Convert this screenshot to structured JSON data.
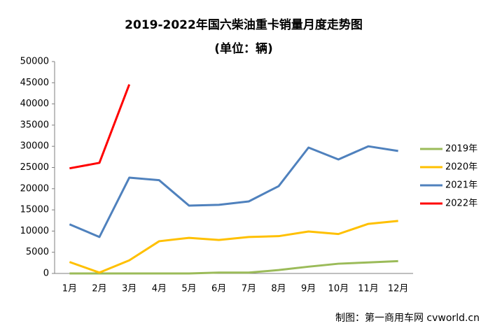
{
  "chart_data": {
    "type": "line",
    "title": "2019-2022年国六柴油重卡销量月度走势图",
    "subtitle": "(单位：辆)",
    "source": "制图：第一商用车网 cvworld.cn",
    "categories": [
      "1月",
      "2月",
      "3月",
      "4月",
      "5月",
      "6月",
      "7月",
      "8月",
      "9月",
      "10月",
      "11月",
      "12月"
    ],
    "series": [
      {
        "name": "2019年",
        "color": "#9bbb59",
        "values": [
          0,
          0,
          0,
          0,
          0,
          200,
          200,
          800,
          1600,
          2300,
          2600,
          2900
        ]
      },
      {
        "name": "2020年",
        "color": "#ffc000",
        "values": [
          2700,
          200,
          3100,
          7600,
          8400,
          7900,
          8600,
          8800,
          9900,
          9300,
          11700,
          12400
        ]
      },
      {
        "name": "2021年",
        "color": "#4f81bd",
        "values": [
          11600,
          8600,
          22600,
          22000,
          16000,
          16200,
          17000,
          20600,
          29700,
          26900,
          30000,
          28900
        ]
      },
      {
        "name": "2022年",
        "color": "#ff0000",
        "values": [
          24800,
          26100,
          44600,
          null,
          null,
          null,
          null,
          null,
          null,
          null,
          null,
          null
        ]
      }
    ],
    "ylim": [
      0,
      50000
    ],
    "yticks": [
      0,
      5000,
      10000,
      15000,
      20000,
      25000,
      30000,
      35000,
      40000,
      45000,
      50000
    ],
    "grid": false,
    "legend": "right"
  }
}
